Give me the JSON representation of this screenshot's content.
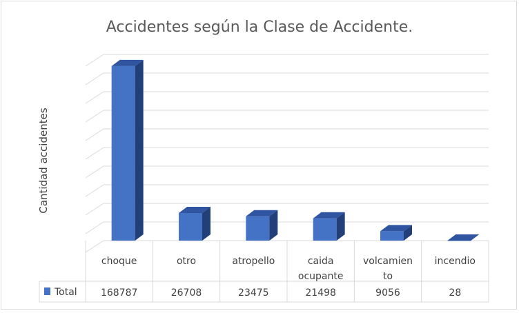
{
  "chart_data": {
    "type": "bar",
    "title": "Accidentes según la Clase de Accidente.",
    "ylabel": "Cantidad accidentes",
    "xlabel": "",
    "categories": [
      [
        "choque"
      ],
      [
        "otro"
      ],
      [
        "atropello"
      ],
      [
        "caida",
        "ocupante"
      ],
      [
        "volcamien",
        "to"
      ],
      [
        "incendio"
      ]
    ],
    "series": [
      {
        "name": "Total",
        "values": [
          168787,
          26708,
          23475,
          21498,
          9056,
          28
        ],
        "color": "#4472c4"
      }
    ],
    "value_labels": [
      "168787",
      "26708",
      "23475",
      "21498",
      "9056",
      "28"
    ],
    "ylim": [
      0,
      180000
    ],
    "y_tick_labels_visible": false,
    "grid": true,
    "style": "3d-column",
    "data_table": true,
    "legend": "data-table-left"
  }
}
